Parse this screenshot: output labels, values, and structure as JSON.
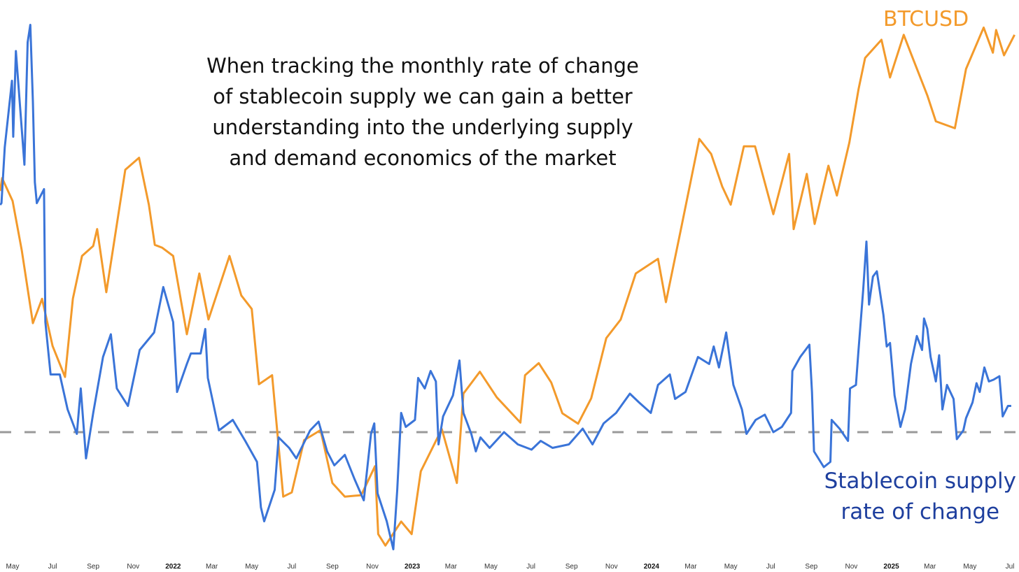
{
  "annotation": {
    "lines": [
      "When tracking the monthly rate of change",
      "of stablecoin supply we can gain a better",
      "understanding into the underlying supply",
      "and demand economics of the market"
    ]
  },
  "chart_data": {
    "type": "line",
    "title": "",
    "xlabel": "",
    "ylabel": "",
    "grid": false,
    "y_axis_labels_shown": false,
    "reference_line": {
      "series": "Stablecoin supply rate of change",
      "value": 0,
      "style": "dashed",
      "color": "#999999"
    },
    "x_ticks": [
      {
        "label": "May",
        "date": "2021-05-01",
        "year": false
      },
      {
        "label": "Jul",
        "date": "2021-07-01",
        "year": false
      },
      {
        "label": "Sep",
        "date": "2021-09-01",
        "year": false
      },
      {
        "label": "Nov",
        "date": "2021-11-01",
        "year": false
      },
      {
        "label": "2022",
        "date": "2022-01-01",
        "year": true
      },
      {
        "label": "Mar",
        "date": "2022-03-01",
        "year": false
      },
      {
        "label": "May",
        "date": "2022-05-01",
        "year": false
      },
      {
        "label": "Jul",
        "date": "2022-07-01",
        "year": false
      },
      {
        "label": "Sep",
        "date": "2022-09-01",
        "year": false
      },
      {
        "label": "Nov",
        "date": "2022-11-01",
        "year": false
      },
      {
        "label": "2023",
        "date": "2023-01-01",
        "year": true
      },
      {
        "label": "Mar",
        "date": "2023-03-01",
        "year": false
      },
      {
        "label": "May",
        "date": "2023-05-01",
        "year": false
      },
      {
        "label": "Jul",
        "date": "2023-07-01",
        "year": false
      },
      {
        "label": "Sep",
        "date": "2023-09-01",
        "year": false
      },
      {
        "label": "Nov",
        "date": "2023-11-01",
        "year": false
      },
      {
        "label": "2024",
        "date": "2024-01-01",
        "year": true
      },
      {
        "label": "Mar",
        "date": "2024-03-01",
        "year": false
      },
      {
        "label": "May",
        "date": "2024-05-01",
        "year": false
      },
      {
        "label": "Jul",
        "date": "2024-07-01",
        "year": false
      },
      {
        "label": "Sep",
        "date": "2024-09-01",
        "year": false
      },
      {
        "label": "Nov",
        "date": "2024-11-01",
        "year": false
      },
      {
        "label": "2025",
        "date": "2025-01-01",
        "year": true
      },
      {
        "label": "Mar",
        "date": "2025-03-01",
        "year": false
      },
      {
        "label": "May",
        "date": "2025-05-01",
        "year": false
      },
      {
        "label": "Jul",
        "date": "2025-07-01",
        "year": false
      }
    ],
    "xlim": [
      "2021-04-12",
      "2025-07-11"
    ],
    "series": [
      {
        "name": "BTCUSD",
        "color": "#F39A2B",
        "yscale": "log",
        "unit": "USD",
        "points": [
          [
            "2021-04-12",
            60000
          ],
          [
            "2021-04-15",
            63000
          ],
          [
            "2021-05-01",
            57800
          ],
          [
            "2021-05-15",
            48000
          ],
          [
            "2021-06-01",
            36500
          ],
          [
            "2021-06-15",
            40000
          ],
          [
            "2021-07-01",
            33500
          ],
          [
            "2021-07-20",
            29800
          ],
          [
            "2021-08-01",
            40000
          ],
          [
            "2021-08-15",
            47000
          ],
          [
            "2021-09-01",
            48800
          ],
          [
            "2021-09-07",
            52000
          ],
          [
            "2021-09-21",
            41000
          ],
          [
            "2021-10-01",
            48000
          ],
          [
            "2021-10-20",
            65000
          ],
          [
            "2021-11-10",
            68000
          ],
          [
            "2021-11-25",
            57000
          ],
          [
            "2021-12-04",
            49000
          ],
          [
            "2021-12-15",
            48500
          ],
          [
            "2022-01-01",
            47000
          ],
          [
            "2022-01-22",
            35000
          ],
          [
            "2022-02-10",
            44000
          ],
          [
            "2022-02-24",
            37000
          ],
          [
            "2022-03-28",
            47000
          ],
          [
            "2022-04-15",
            40500
          ],
          [
            "2022-05-01",
            38500
          ],
          [
            "2022-05-12",
            29000
          ],
          [
            "2022-06-01",
            30000
          ],
          [
            "2022-06-18",
            19000
          ],
          [
            "2022-07-01",
            19300
          ],
          [
            "2022-07-20",
            23500
          ],
          [
            "2022-08-14",
            24400
          ],
          [
            "2022-09-01",
            20000
          ],
          [
            "2022-09-20",
            19000
          ],
          [
            "2022-10-15",
            19100
          ],
          [
            "2022-11-05",
            21300
          ],
          [
            "2022-11-10",
            16500
          ],
          [
            "2022-11-21",
            15800
          ],
          [
            "2022-12-15",
            17300
          ],
          [
            "2022-12-31",
            16500
          ],
          [
            "2023-01-14",
            20900
          ],
          [
            "2023-02-15",
            24500
          ],
          [
            "2023-03-10",
            20000
          ],
          [
            "2023-03-20",
            28000
          ],
          [
            "2023-04-14",
            30400
          ],
          [
            "2023-05-10",
            27600
          ],
          [
            "2023-06-15",
            25100
          ],
          [
            "2023-06-22",
            30000
          ],
          [
            "2023-07-13",
            31400
          ],
          [
            "2023-08-01",
            29200
          ],
          [
            "2023-08-18",
            26000
          ],
          [
            "2023-09-11",
            25000
          ],
          [
            "2023-10-01",
            27500
          ],
          [
            "2023-10-24",
            34500
          ],
          [
            "2023-11-15",
            37000
          ],
          [
            "2023-12-08",
            44000
          ],
          [
            "2024-01-11",
            46500
          ],
          [
            "2024-01-23",
            39500
          ],
          [
            "2024-02-15",
            52000
          ],
          [
            "2024-03-14",
            73000
          ],
          [
            "2024-04-01",
            69000
          ],
          [
            "2024-04-18",
            61000
          ],
          [
            "2024-05-01",
            57000
          ],
          [
            "2024-05-21",
            71000
          ],
          [
            "2024-06-07",
            71000
          ],
          [
            "2024-07-05",
            55000
          ],
          [
            "2024-07-29",
            69000
          ],
          [
            "2024-08-05",
            52000
          ],
          [
            "2024-08-25",
            64000
          ],
          [
            "2024-09-06",
            53000
          ],
          [
            "2024-09-27",
            66000
          ],
          [
            "2024-10-10",
            59000
          ],
          [
            "2024-10-29",
            72000
          ],
          [
            "2024-11-12",
            88000
          ],
          [
            "2024-11-22",
            99000
          ],
          [
            "2024-12-17",
            106000
          ],
          [
            "2024-12-30",
            92000
          ],
          [
            "2025-01-20",
            108000
          ],
          [
            "2025-02-01",
            100000
          ],
          [
            "2025-02-25",
            86000
          ],
          [
            "2025-03-10",
            78000
          ],
          [
            "2025-04-08",
            76000
          ],
          [
            "2025-04-25",
            95000
          ],
          [
            "2025-05-22",
            111000
          ],
          [
            "2025-06-05",
            101000
          ],
          [
            "2025-06-10",
            110000
          ],
          [
            "2025-06-22",
            100000
          ],
          [
            "2025-07-08",
            108000
          ]
        ]
      },
      {
        "name": "Stablecoin supply rate of change",
        "color": "#3A74D8",
        "unit": "% monthly change (approx.)",
        "points": [
          [
            "2021-04-12",
            13.0
          ],
          [
            "2021-04-14",
            13.1
          ],
          [
            "2021-04-19",
            16.3
          ],
          [
            "2021-04-30",
            20.1
          ],
          [
            "2021-05-02",
            16.9
          ],
          [
            "2021-05-06",
            21.8
          ],
          [
            "2021-05-19",
            15.3
          ],
          [
            "2021-05-24",
            22.3
          ],
          [
            "2021-05-28",
            23.3
          ],
          [
            "2021-06-01",
            18.9
          ],
          [
            "2021-06-04",
            14.3
          ],
          [
            "2021-06-07",
            13.1
          ],
          [
            "2021-06-18",
            13.9
          ],
          [
            "2021-06-20",
            6.3
          ],
          [
            "2021-06-28",
            3.3
          ],
          [
            "2021-07-12",
            3.3
          ],
          [
            "2021-07-24",
            1.3
          ],
          [
            "2021-08-07",
            -0.1
          ],
          [
            "2021-08-13",
            2.5
          ],
          [
            "2021-08-21",
            -1.5
          ],
          [
            "2021-09-01",
            1.1
          ],
          [
            "2021-09-16",
            4.3
          ],
          [
            "2021-09-28",
            5.6
          ],
          [
            "2021-10-07",
            2.5
          ],
          [
            "2021-10-24",
            1.5
          ],
          [
            "2021-11-11",
            4.7
          ],
          [
            "2021-12-03",
            5.7
          ],
          [
            "2021-12-17",
            8.3
          ],
          [
            "2022-01-01",
            6.3
          ],
          [
            "2022-01-07",
            2.3
          ],
          [
            "2022-01-22",
            3.9
          ],
          [
            "2022-01-28",
            4.5
          ],
          [
            "2022-02-12",
            4.5
          ],
          [
            "2022-02-19",
            5.9
          ],
          [
            "2022-02-23",
            3.1
          ],
          [
            "2022-03-12",
            0.1
          ],
          [
            "2022-04-02",
            0.7
          ],
          [
            "2022-04-21",
            -0.5
          ],
          [
            "2022-05-09",
            -1.7
          ],
          [
            "2022-05-15",
            -4.3
          ],
          [
            "2022-05-20",
            -5.1
          ],
          [
            "2022-06-05",
            -3.3
          ],
          [
            "2022-06-11",
            -0.3
          ],
          [
            "2022-06-27",
            -0.9
          ],
          [
            "2022-07-08",
            -1.5
          ],
          [
            "2022-07-29",
            0.1
          ],
          [
            "2022-08-11",
            0.6
          ],
          [
            "2022-08-24",
            -1.1
          ],
          [
            "2022-09-04",
            -1.9
          ],
          [
            "2022-09-20",
            -1.3
          ],
          [
            "2022-10-05",
            -2.7
          ],
          [
            "2022-10-19",
            -3.9
          ],
          [
            "2022-10-30",
            -0.1
          ],
          [
            "2022-11-04",
            0.5
          ],
          [
            "2022-11-09",
            -3.5
          ],
          [
            "2022-11-23",
            -5.1
          ],
          [
            "2022-12-03",
            -6.7
          ],
          [
            "2022-12-09",
            -3.3
          ],
          [
            "2022-12-15",
            1.1
          ],
          [
            "2022-12-22",
            0.3
          ],
          [
            "2023-01-05",
            0.7
          ],
          [
            "2023-01-10",
            3.1
          ],
          [
            "2023-01-20",
            2.5
          ],
          [
            "2023-01-29",
            3.5
          ],
          [
            "2023-02-06",
            2.9
          ],
          [
            "2023-02-10",
            -0.7
          ],
          [
            "2023-02-17",
            0.9
          ],
          [
            "2023-03-04",
            2.1
          ],
          [
            "2023-03-14",
            4.1
          ],
          [
            "2023-03-20",
            1.1
          ],
          [
            "2023-04-01",
            -0.1
          ],
          [
            "2023-04-08",
            -1.1
          ],
          [
            "2023-04-15",
            -0.3
          ],
          [
            "2023-04-29",
            -0.9
          ],
          [
            "2023-05-21",
            0.0
          ],
          [
            "2023-06-11",
            -0.7
          ],
          [
            "2023-07-02",
            -1.0
          ],
          [
            "2023-07-16",
            -0.5
          ],
          [
            "2023-08-03",
            -0.9
          ],
          [
            "2023-08-28",
            -0.7
          ],
          [
            "2023-09-18",
            0.2
          ],
          [
            "2023-10-03",
            -0.7
          ],
          [
            "2023-10-20",
            0.5
          ],
          [
            "2023-11-08",
            1.1
          ],
          [
            "2023-11-29",
            2.2
          ],
          [
            "2023-12-13",
            1.7
          ],
          [
            "2023-12-31",
            1.1
          ],
          [
            "2024-01-11",
            2.7
          ],
          [
            "2024-01-29",
            3.3
          ],
          [
            "2024-02-06",
            1.9
          ],
          [
            "2024-02-22",
            2.3
          ],
          [
            "2024-03-12",
            4.3
          ],
          [
            "2024-03-29",
            3.9
          ],
          [
            "2024-04-05",
            4.9
          ],
          [
            "2024-04-13",
            3.7
          ],
          [
            "2024-04-24",
            5.7
          ],
          [
            "2024-05-05",
            2.7
          ],
          [
            "2024-05-18",
            1.3
          ],
          [
            "2024-05-25",
            -0.1
          ],
          [
            "2024-06-08",
            0.7
          ],
          [
            "2024-06-22",
            1.0
          ],
          [
            "2024-07-05",
            0.0
          ],
          [
            "2024-07-18",
            0.3
          ],
          [
            "2024-08-01",
            1.1
          ],
          [
            "2024-08-03",
            3.5
          ],
          [
            "2024-08-15",
            4.3
          ],
          [
            "2024-08-29",
            5.0
          ],
          [
            "2024-09-02",
            2.3
          ],
          [
            "2024-09-05",
            -1.1
          ],
          [
            "2024-09-20",
            -2.0
          ],
          [
            "2024-09-30",
            -1.7
          ],
          [
            "2024-10-02",
            0.7
          ],
          [
            "2024-10-14",
            0.2
          ],
          [
            "2024-10-27",
            -0.5
          ],
          [
            "2024-10-30",
            2.5
          ],
          [
            "2024-11-08",
            2.7
          ],
          [
            "2024-11-12",
            4.7
          ],
          [
            "2024-11-19",
            8.1
          ],
          [
            "2024-11-24",
            10.9
          ],
          [
            "2024-11-28",
            7.3
          ],
          [
            "2024-12-04",
            8.9
          ],
          [
            "2024-12-10",
            9.2
          ],
          [
            "2024-12-20",
            6.7
          ],
          [
            "2024-12-25",
            4.9
          ],
          [
            "2024-12-30",
            5.1
          ],
          [
            "2025-01-06",
            2.1
          ],
          [
            "2025-01-15",
            0.3
          ],
          [
            "2025-01-22",
            1.3
          ],
          [
            "2025-01-31",
            3.9
          ],
          [
            "2025-02-09",
            5.5
          ],
          [
            "2025-02-17",
            4.7
          ],
          [
            "2025-02-20",
            6.5
          ],
          [
            "2025-02-25",
            5.9
          ],
          [
            "2025-03-02",
            4.3
          ],
          [
            "2025-03-10",
            2.9
          ],
          [
            "2025-03-15",
            4.4
          ],
          [
            "2025-03-20",
            1.3
          ],
          [
            "2025-03-27",
            2.7
          ],
          [
            "2025-04-06",
            1.9
          ],
          [
            "2025-04-11",
            -0.4
          ],
          [
            "2025-04-21",
            0.1
          ],
          [
            "2025-04-25",
            0.8
          ],
          [
            "2025-05-05",
            1.7
          ],
          [
            "2025-05-11",
            2.8
          ],
          [
            "2025-05-16",
            2.3
          ],
          [
            "2025-05-23",
            3.7
          ],
          [
            "2025-05-30",
            2.9
          ],
          [
            "2025-06-06",
            3.0
          ],
          [
            "2025-06-15",
            3.2
          ],
          [
            "2025-06-20",
            0.9
          ],
          [
            "2025-06-28",
            1.5
          ],
          [
            "2025-07-03",
            1.5
          ]
        ]
      }
    ]
  },
  "legend": {
    "btc_label": "BTCUSD",
    "stable_label_lines": [
      "Stablecoin supply",
      "rate of change"
    ]
  }
}
